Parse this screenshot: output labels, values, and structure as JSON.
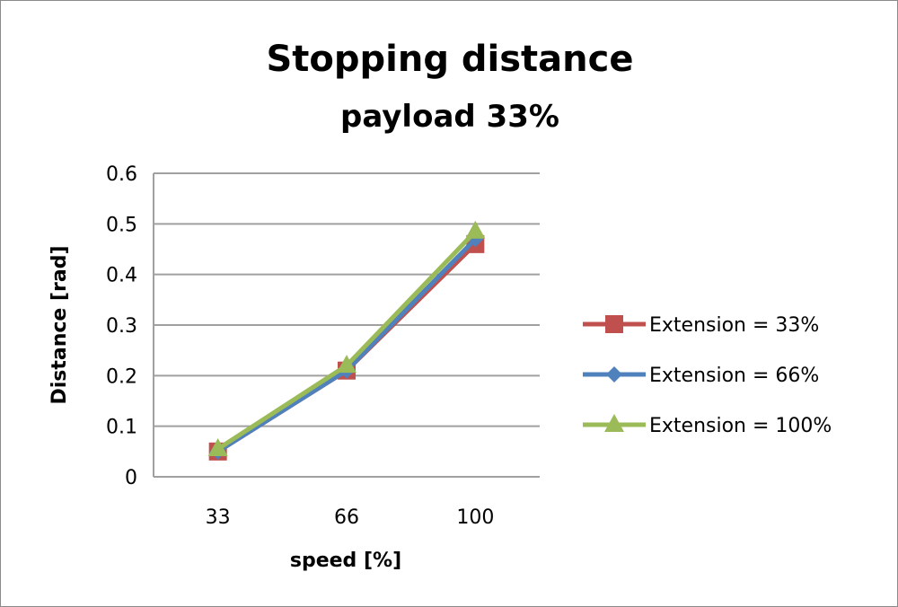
{
  "chart_data": {
    "type": "line",
    "title": "Stopping distance",
    "subtitle": "payload 33%",
    "xlabel": "speed [%]",
    "ylabel": "Distance [rad]",
    "categories": [
      "33",
      "66",
      "100"
    ],
    "ylim": [
      0,
      0.6
    ],
    "yticks": [
      "0",
      "0.1",
      "0.2",
      "0.3",
      "0.4",
      "0.5",
      "0.6"
    ],
    "grid": true,
    "legend_position": "right",
    "series": [
      {
        "name": "Extension = 33%",
        "values": [
          0.05,
          0.21,
          0.46
        ],
        "color": "#c0504d",
        "marker": "square"
      },
      {
        "name": "Extension = 66%",
        "values": [
          0.05,
          0.21,
          0.47
        ],
        "color": "#4f81bd",
        "marker": "diamond"
      },
      {
        "name": "Extension = 100%",
        "values": [
          0.055,
          0.22,
          0.485
        ],
        "color": "#9bbb59",
        "marker": "triangle"
      }
    ]
  }
}
